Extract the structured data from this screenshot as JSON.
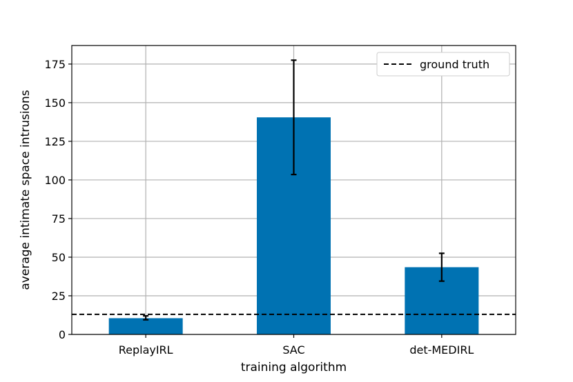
{
  "chart_data": {
    "type": "bar",
    "categories": [
      "ReplayIRL",
      "SAC",
      "det-MEDIRL"
    ],
    "values": [
      10.5,
      140.5,
      43.5
    ],
    "error_low": [
      9.5,
      103.5,
      34.5
    ],
    "error_high": [
      12.0,
      177.5,
      52.5
    ],
    "reference_line": {
      "label": "ground truth",
      "value": 13.0,
      "style": "dashed",
      "color": "#000000"
    },
    "xlabel": "training algorithm",
    "ylabel": "average intimate space intrusions",
    "ylim": [
      0,
      187
    ],
    "yticks": [
      0,
      25,
      50,
      75,
      100,
      125,
      150,
      175
    ],
    "grid": true,
    "legend_position": "top-right",
    "bar_color": "#0072B2"
  }
}
